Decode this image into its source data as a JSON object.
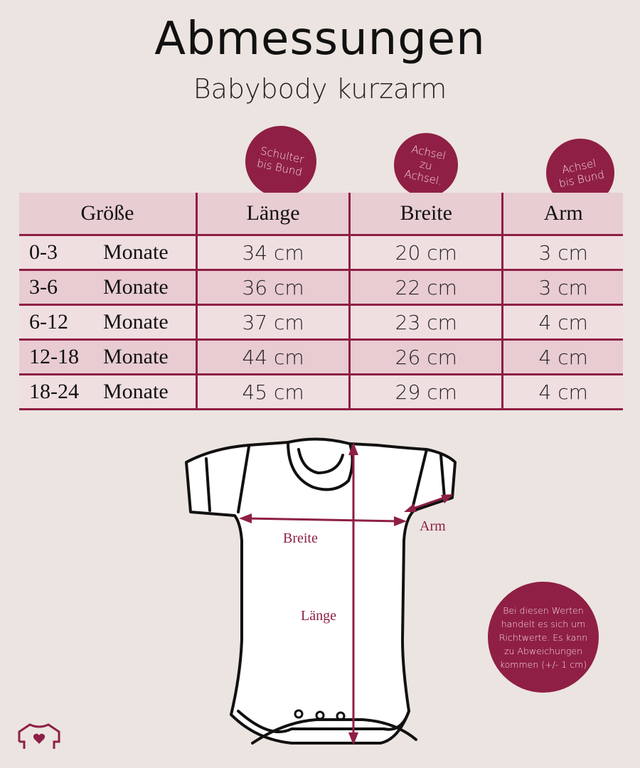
{
  "title": "Abmessungen",
  "subtitle": "Babybody kurzarm",
  "badges": [
    {
      "lines": [
        "Schulter",
        "bis Bund"
      ]
    },
    {
      "lines": [
        "Achsel",
        "zu",
        "Achsel."
      ]
    },
    {
      "lines": [
        "Achsel",
        "bis Bund"
      ]
    }
  ],
  "table": {
    "headers": [
      "Größe",
      "Länge",
      "Breite",
      "Arm"
    ],
    "rows": [
      {
        "range": "0-3",
        "unit": "Monate",
        "laenge": "34 cm",
        "breite": "20 cm",
        "arm": "3 cm"
      },
      {
        "range": "3-6",
        "unit": "Monate",
        "laenge": "36 cm",
        "breite": "22 cm",
        "arm": "3 cm"
      },
      {
        "range": "6-12",
        "unit": "Monate",
        "laenge": "37 cm",
        "breite": "23 cm",
        "arm": "4 cm"
      },
      {
        "range": "12-18",
        "unit": "Monate",
        "laenge": "44 cm",
        "breite": "26 cm",
        "arm": "4 cm"
      },
      {
        "range": "18-24",
        "unit": "Monate",
        "laenge": "45 cm",
        "breite": "29 cm",
        "arm": "4 cm"
      }
    ]
  },
  "diagram": {
    "breite": "Breite",
    "laenge": "Länge",
    "arm": "Arm"
  },
  "note": [
    "Bei diesen Werten",
    "handelt es sich um",
    "Richtwerte. Es kann",
    "zu Abweichungen",
    "kommen (+/- 1 cm)"
  ],
  "logo_icon": "shirt-heart-icon",
  "colors": {
    "accent": "#8e1f45",
    "background": "#ece4e0",
    "header_row": "#e8cdd3",
    "row_light": "#f0dfe1",
    "row_dark": "#e8ccd2"
  }
}
